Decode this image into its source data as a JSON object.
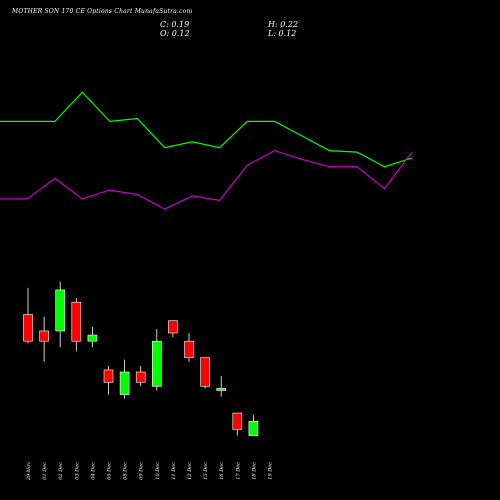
{
  "title": "MOTHER SON 170 CE Options Chart MunafaSutra.com",
  "ohlc": {
    "c_label": "C: 0.19",
    "o_label": "O: 0.12",
    "h_label": "H: 0.22",
    "l_label": "L: 0.12"
  },
  "colors": {
    "background": "#000000",
    "up": "#00ff00",
    "down": "#ff0000",
    "wick": "#ffffff",
    "line_green": "#00ff00",
    "line_magenta": "#cc00cc",
    "text": "#ffffff"
  },
  "chart_data": {
    "type": "candlestick",
    "title": "MOTHER SON 170 CE Options Chart MunafaSutra.com",
    "categories": [
      "29 Nov",
      "01 Dec",
      "02 Dec",
      "03 Dec",
      "04 Dec",
      "05 Dec",
      "08 Dec",
      "09 Dec",
      "10 Dec",
      "11 Dec",
      "12 Dec",
      "15 Dec",
      "16 Dec",
      "17 Dec",
      "18 Dec",
      "19 Dec"
    ],
    "candles": [
      {
        "date": "29 Nov",
        "open": 0.71,
        "high": 0.84,
        "low": 0.57,
        "close": 0.58
      },
      {
        "date": "01 Dec",
        "open": 0.63,
        "high": 0.7,
        "low": 0.48,
        "close": 0.58
      },
      {
        "date": "02 Dec",
        "open": 0.63,
        "high": 0.87,
        "low": 0.55,
        "close": 0.83
      },
      {
        "date": "03 Dec",
        "open": 0.77,
        "high": 0.79,
        "low": 0.53,
        "close": 0.58
      },
      {
        "date": "04 Dec",
        "open": 0.58,
        "high": 0.65,
        "low": 0.55,
        "close": 0.61
      },
      {
        "date": "05 Dec",
        "open": 0.44,
        "high": 0.46,
        "low": 0.32,
        "close": 0.38
      },
      {
        "date": "08 Dec",
        "open": 0.32,
        "high": 0.49,
        "low": 0.3,
        "close": 0.43
      },
      {
        "date": "09 Dec",
        "open": 0.43,
        "high": 0.46,
        "low": 0.36,
        "close": 0.38
      },
      {
        "date": "10 Dec",
        "open": 0.36,
        "high": 0.64,
        "low": 0.34,
        "close": 0.58
      },
      {
        "date": "11 Dec",
        "open": 0.68,
        "high": 0.68,
        "low": 0.6,
        "close": 0.62
      },
      {
        "date": "12 Dec",
        "open": 0.58,
        "high": 0.62,
        "low": 0.48,
        "close": 0.5
      },
      {
        "date": "15 Dec",
        "open": 0.5,
        "high": 0.5,
        "low": 0.35,
        "close": 0.36
      },
      {
        "date": "16 Dec",
        "open": 0.34,
        "high": 0.41,
        "low": 0.31,
        "close": 0.35
      },
      {
        "date": "17 Dec",
        "open": 0.23,
        "high": 0.23,
        "low": 0.12,
        "close": 0.15
      },
      {
        "date": "18 Dec",
        "open": 0.12,
        "high": 0.22,
        "low": 0.12,
        "close": 0.19
      }
    ],
    "line_green": [
      88,
      88,
      88,
      108,
      88,
      90,
      70,
      74,
      70,
      88,
      88,
      78,
      68,
      67,
      57,
      63
    ],
    "line_magenta": [
      35,
      35,
      49,
      35,
      41,
      38,
      28,
      37,
      34,
      58,
      68,
      62,
      57,
      57,
      42,
      67
    ],
    "ylim_price": [
      0.05,
      1.0
    ],
    "ylim_lines": [
      0,
      130
    ]
  }
}
